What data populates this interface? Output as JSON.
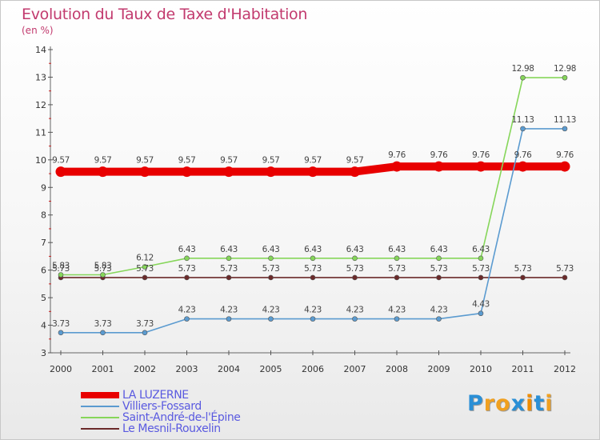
{
  "title": "Evolution du Taux de Taxe d'Habitation",
  "subtitle": "(en %)",
  "logo": {
    "letters": [
      "P",
      "r",
      "o",
      "x",
      "i",
      "t",
      "i"
    ],
    "colors": [
      "#2a8fd6",
      "#f0a020",
      "#f0a020",
      "#2a8fd6",
      "#f08c00",
      "#2a8fd6",
      "#f0a020"
    ]
  },
  "chart_data": {
    "type": "line",
    "title": "Evolution du Taux de Taxe d'Habitation",
    "ylabel": "(en %)",
    "x": [
      "2000",
      "2001",
      "2002",
      "2003",
      "2004",
      "2005",
      "2006",
      "2007",
      "2008",
      "2009",
      "2010",
      "2011",
      "2012"
    ],
    "ylim": [
      3,
      14
    ],
    "yticks": [
      "3",
      "4",
      "5",
      "6",
      "7",
      "8",
      "9",
      "10",
      "11",
      "12",
      "13",
      "14"
    ],
    "series": [
      {
        "name": "LA LUZERNE",
        "color": "#e80000",
        "values": [
          9.57,
          9.57,
          9.57,
          9.57,
          9.57,
          9.57,
          9.57,
          9.57,
          9.76,
          9.76,
          9.76,
          9.76,
          9.76
        ],
        "labels": [
          "9.57",
          "9.57",
          "9.57",
          "9.57",
          "9.57",
          "9.57",
          "9.57",
          "9.57",
          "9.76",
          "9.76",
          "9.76",
          "9.76",
          "9.76"
        ]
      },
      {
        "name": "Villiers-Fossard",
        "color": "#5b9bd0",
        "values": [
          3.73,
          3.73,
          3.73,
          4.23,
          4.23,
          4.23,
          4.23,
          4.23,
          4.23,
          4.23,
          4.43,
          11.13,
          11.13
        ],
        "labels": [
          "3.73",
          "3.73",
          "3.73",
          "4.23",
          "4.23",
          "4.23",
          "4.23",
          "4.23",
          "4.23",
          "4.23",
          "4.43",
          "11.13",
          "11.13"
        ]
      },
      {
        "name": "Saint-André-de-l'Épine",
        "color": "#86d65a",
        "values": [
          5.83,
          5.83,
          6.12,
          6.43,
          6.43,
          6.43,
          6.43,
          6.43,
          6.43,
          6.43,
          6.43,
          12.98,
          12.98
        ],
        "labels": [
          "5.83",
          "5.83",
          "6.12",
          "6.43",
          "6.43",
          "6.43",
          "6.43",
          "6.43",
          "6.43",
          "6.43",
          "6.43",
          "12.98",
          "12.98"
        ]
      },
      {
        "name": "Le Mesnil-Rouxelin",
        "color": "#6b2a2a",
        "values": [
          5.73,
          5.73,
          5.73,
          5.73,
          5.73,
          5.73,
          5.73,
          5.73,
          5.73,
          5.73,
          5.73,
          5.73,
          5.73
        ],
        "labels": [
          "5.73",
          "5.73",
          "5.73",
          "5.73",
          "5.73",
          "5.73",
          "5.73",
          "5.73",
          "5.73",
          "5.73",
          "5.73",
          "5.73",
          "5.73"
        ]
      }
    ]
  }
}
